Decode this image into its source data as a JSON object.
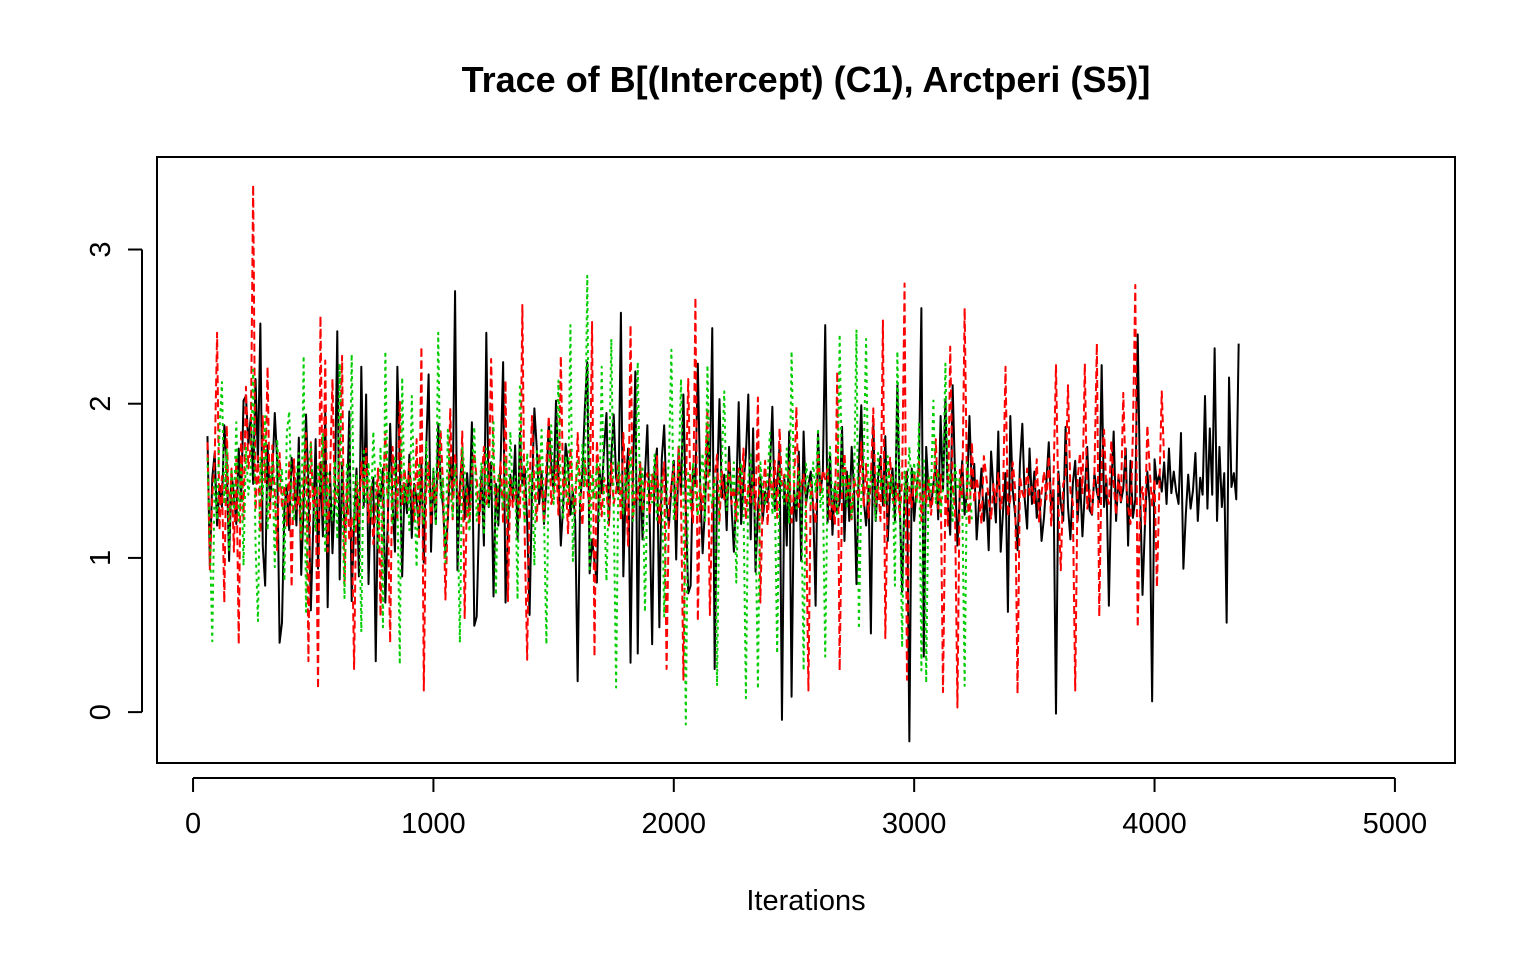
{
  "chart_data": {
    "type": "line",
    "title": "Trace of B[(Intercept) (C1), Arctperi (S5)]",
    "xlabel": "Iterations",
    "ylabel": "",
    "xlim": [
      -150,
      5250
    ],
    "ylim": [
      -0.33,
      3.6
    ],
    "xticks": [
      0,
      1000,
      2000,
      3000,
      4000,
      5000
    ],
    "xtick_labels": [
      "0",
      "1000",
      "2000",
      "3000",
      "4000",
      "5000"
    ],
    "yticks": [
      0,
      1,
      2,
      3
    ],
    "ytick_labels": [
      "0",
      "1",
      "2",
      "3"
    ],
    "grid": false,
    "legend": "none",
    "x_start": 60,
    "x_step": 10,
    "series": [
      {
        "color": "#000000",
        "linestyle": "solid",
        "values": [
          1.79,
          0.95,
          1.52,
          1.68,
          1.21,
          1.47,
          1.33,
          1.86,
          1.62,
          0.98,
          1.55,
          1.41,
          1.22,
          1.71,
          1.37,
          2.02,
          2.05,
          1.74,
          1.91,
          1.48,
          2.16,
          1.62,
          2.52,
          1.08,
          0.82,
          1.73,
          1.36,
          1.55,
          1.94,
          1.63,
          0.45,
          0.58,
          1.32,
          1.47,
          1.18,
          1.65,
          1.52,
          1.21,
          1.78,
          0.89,
          1.34,
          1.93,
          1.47,
          0.66,
          1.21,
          1.77,
          0.93,
          1.62,
          1.14,
          1.95,
          0.68,
          1.56,
          1.03,
          1.42,
          2.47,
          0.86,
          1.62,
          1.18,
          1.31,
          1.95,
          0.72,
          1.24,
          1.58,
          0.88,
          2.24,
          1.33,
          2.06,
          0.83,
          1.41,
          1.52,
          0.33,
          1.44,
          1.37,
          1.58,
          0.71,
          1.23,
          1.87,
          1.35,
          1.04,
          2.24,
          1.62,
          0.88,
          1.48,
          1.29,
          1.67,
          1.13,
          1.48,
          1.38,
          1.19,
          1.61,
          0.97,
          1.71,
          2.19,
          1.04,
          1.56,
          1.22,
          1.87,
          1.48,
          1.33,
          1.02,
          1.25,
          1.65,
          1.41,
          2.73,
          0.92,
          1.46,
          1.68,
          1.25,
          1.55,
          1.31,
          1.88,
          0.56,
          0.62,
          1.27,
          1.55,
          1.08,
          2.46,
          1.33,
          1.62,
          0.75,
          1.48,
          1.21,
          1.65,
          2.27,
          0.71,
          1.18,
          1.54,
          1.38,
          1.73,
          1.12,
          1.81,
          1.47,
          1.58,
          1.24,
          0.63,
          1.42,
          1.97,
          1.71,
          1.35,
          1.56,
          1.22,
          1.48,
          1.88,
          1.61,
          1.43,
          2.02,
          1.54,
          1.08,
          1.35,
          1.74,
          1.61,
          1.28,
          1.43,
          1.24,
          0.2,
          1.35,
          1.56,
          1.97,
          2.27,
          0.9,
          1.12,
          0.98,
          0.84,
          1.58,
          1.42,
          1.71,
          1.94,
          1.23,
          1.65,
          1.93,
          1.52,
          1.42,
          2.59,
          0.88,
          1.46,
          1.71,
          0.32,
          1.54,
          2.21,
          0.38,
          1.62,
          1.12,
          1.54,
          1.86,
          1.23,
          0.44,
          1.58,
          1.71,
          0.55,
          1.64,
          1.86,
          1.35,
          1.21,
          1.46,
          1.63,
          0.99,
          1.72,
          1.41,
          2.06,
          1.33,
          0.77,
          0.82,
          1.59,
          1.48,
          2.26,
          1.45,
          1.03,
          1.33,
          1.81,
          1.56,
          2.49,
          0.28,
          1.46,
          2.03,
          1.39,
          1.54,
          1.18,
          1.72,
          1.34,
          1.04,
          1.42,
          2.01,
          1.22,
          1.48,
          1.67,
          2.06,
          1.12,
          1.84,
          0.91,
          1.31,
          1.54,
          1.24,
          1.43,
          1.36,
          1.57,
          1.98,
          1.31,
          1.49,
          1.72,
          -0.05,
          1.51,
          1.08,
          1.82,
          0.1,
          1.45,
          1.24,
          1.69,
          0.98,
          1.82,
          1.35,
          1.47,
          1.56,
          1.33,
          0.69,
          1.81,
          1.42,
          1.55,
          2.51,
          1.23,
          1.68,
          1.15,
          1.47,
          1.29,
          1.36,
          1.85,
          1.11,
          1.56,
          1.24,
          1.72,
          1.44,
          0.83,
          1.61,
          1.99,
          1.38,
          1.21,
          1.45,
          0.51,
          1.87,
          1.24,
          1.52,
          1.66,
          1.34,
          1.79,
          1.11,
          1.45,
          1.58,
          1.24,
          2.12,
          1.36,
          0.78,
          1.42,
          1.56,
          -0.19,
          1.58,
          1.24,
          1.45,
          1.61,
          2.62,
          0.36,
          1.72,
          1.43,
          1.33,
          1.48,
          1.61,
          1.25,
          1.92,
          1.44,
          2.03,
          1.37,
          1.15,
          2.12,
          1.54,
          1.08,
          1.42,
          1.63,
          1.28,
          1.44,
          1.92,
          1.45,
          1.61,
          1.12,
          1.36,
          1.58,
          1.24,
          1.42,
          1.05,
          1.69,
          1.44,
          1.23,
          1.82,
          1.04,
          1.31,
          1.55,
          0.65,
          1.92,
          1.44,
          1.28,
          1.05,
          1.61,
          1.87,
          1.38,
          1.19,
          1.71,
          1.35,
          1.56,
          1.26,
          1.44,
          1.11,
          1.26,
          1.49,
          1.75,
          1.31,
          1.44,
          -0.01,
          1.56,
          1.35,
          1.24,
          1.85,
          1.33,
          1.12,
          1.48,
          1.63,
          1.24,
          1.52,
          1.14,
          1.43,
          1.72,
          1.31,
          1.28,
          1.55,
          1.43,
          1.36,
          2.25,
          1.33,
          1.51,
          0.69,
          1.45,
          1.82,
          1.24,
          1.53,
          1.36,
          1.45,
          1.71,
          1.08,
          1.63,
          1.26,
          1.38,
          2.45,
          1.44,
          0.76,
          1.21,
          1.56,
          1.35,
          0.07,
          1.64,
          1.48,
          1.54,
          1.43,
          1.62,
          1.35,
          1.71,
          1.42,
          1.56,
          1.43,
          1.35,
          1.81,
          0.93,
          1.28,
          1.54,
          1.32,
          1.44,
          1.68,
          1.24,
          1.52,
          1.41,
          2.05,
          1.32,
          1.84,
          1.41,
          2.36,
          1.24,
          1.72,
          1.33,
          1.55,
          0.58,
          2.17,
          1.46,
          1.55,
          1.38,
          2.39
        ]
      },
      {
        "color": "#ff0000",
        "linestyle": "dashed",
        "values": [
          1.75,
          0.92,
          1.41,
          1.63,
          2.46,
          1.18,
          1.53,
          0.71,
          1.86,
          1.22,
          1.58,
          1.04,
          1.65,
          0.44,
          1.83,
          1.25,
          2.11,
          1.58,
          1.72,
          3.42,
          1.31,
          1.66,
          1.16,
          1.92,
          1.49,
          2.24,
          1.26,
          1.73,
          1.41,
          1.05,
          1.68,
          1.32,
          1.47,
          1.21,
          1.62,
          0.81,
          1.64,
          1.32,
          1.41,
          1.12,
          1.52,
          1.81,
          0.33,
          1.75,
          1.33,
          1.47,
          0.15,
          2.57,
          1.28,
          2.28,
          1.04,
          1.55,
          2.16,
          1.35,
          1.42,
          1.62,
          2.31,
          0.82,
          1.48,
          1.11,
          1.27,
          0.28,
          1.51,
          1.23,
          1.62,
          1.42,
          1.71,
          1.23,
          1.46,
          1.09,
          1.35,
          1.58,
          0.62,
          1.43,
          1.82,
          1.33,
          0.45,
          1.72,
          1.48,
          1.26,
          2.02,
          1.34,
          1.58,
          1.37,
          1.62,
          1.41,
          1.24,
          1.77,
          1.12,
          2.37,
          0.14,
          1.44,
          1.62,
          1.21,
          1.51,
          1.34,
          1.56,
          1.82,
          1.46,
          0.73,
          1.28,
          1.97,
          1.25,
          1.68,
          1.43,
          1.35,
          1.82,
          0.61,
          1.45,
          1.24,
          1.53,
          1.68,
          1.51,
          1.21,
          1.48,
          1.72,
          1.35,
          1.41,
          2.29,
          1.62,
          1.32,
          1.49,
          1.62,
          1.22,
          2.15,
          0.72,
          1.51,
          1.33,
          1.45,
          1.38,
          1.25,
          2.64,
          1.12,
          0.34,
          1.48,
          1.92,
          1.45,
          1.24,
          1.68,
          1.45,
          1.22,
          1.62,
          1.92,
          1.35,
          1.42,
          1.64,
          1.28,
          2.31,
          1.41,
          1.53,
          1.16,
          1.72,
          1.39,
          1.29,
          1.81,
          1.43,
          1.21,
          1.64,
          1.45,
          1.32,
          2.53,
          0.36,
          1.76,
          1.48,
          1.27,
          1.52,
          1.46,
          1.21,
          1.62,
          1.35,
          1.43,
          1.63,
          1.24,
          1.81,
          1.46,
          1.08,
          2.51,
          1.26,
          1.42,
          1.38,
          1.62,
          1.29,
          1.48,
          1.55,
          1.28,
          1.54,
          1.37,
          1.66,
          1.21,
          1.43,
          1.62,
          0.28,
          1.35,
          1.47,
          1.59,
          1.25,
          1.72,
          1.38,
          0.21,
          1.42,
          2.16,
          1.36,
          1.23,
          2.69,
          0.59,
          1.48,
          1.31,
          1.56,
          1.97,
          0.63,
          1.35,
          1.52,
          1.67,
          1.24,
          1.56,
          1.38,
          1.41,
          1.63,
          1.35,
          1.46,
          1.23,
          1.58,
          1.42,
          1.71,
          1.25,
          1.48,
          1.36,
          1.55,
          1.31,
          2.04,
          0.71,
          1.38,
          1.63,
          1.21,
          1.52,
          1.39,
          1.63,
          1.26,
          1.84,
          1.47,
          1.54,
          1.35,
          1.62,
          1.23,
          1.43,
          1.98,
          1.33,
          1.47,
          1.54,
          1.35,
          0.14,
          1.49,
          1.35,
          1.22,
          1.68,
          1.43,
          1.57,
          1.51,
          1.58,
          1.24,
          1.38,
          1.21,
          2.21,
          0.27,
          1.42,
          1.68,
          1.39,
          1.51,
          1.25,
          1.52,
          1.43,
          1.38,
          1.75,
          1.33,
          1.61,
          1.26,
          1.52,
          1.97,
          1.35,
          1.46,
          1.24,
          2.54,
          0.48,
          1.43,
          1.65,
          1.38,
          1.35,
          1.48,
          1.27,
          1.51,
          2.78,
          0.21,
          1.46,
          1.33,
          1.55,
          1.38,
          1.63,
          1.24,
          1.48,
          1.36,
          1.52,
          1.28,
          1.43,
          1.77,
          1.32,
          1.54,
          0.13,
          1.42,
          1.21,
          2.37,
          1.46,
          1.31,
          0.03,
          1.57,
          1.38,
          2.62,
          1.43,
          1.21,
          1.75,
          1.36,
          1.52,
          1.41,
          1.22,
          1.66,
          1.53,
          1.38,
          1.25,
          1.48,
          1.36,
          1.55,
          1.32,
          1.44,
          2.24,
          1.27,
          1.38,
          1.62,
          1.45,
          0.12,
          1.53,
          1.42,
          1.38,
          1.58,
          1.41,
          1.46,
          1.35,
          1.64,
          1.23,
          1.42,
          1.56,
          1.38,
          1.66,
          1.21,
          1.52,
          2.25,
          1.35,
          0.92,
          1.48,
          1.52,
          2.12,
          1.43,
          1.36,
          0.14,
          1.51,
          1.68,
          1.42,
          2.26,
          1.32,
          1.44,
          1.28,
          1.55,
          2.39,
          0.62,
          1.61,
          1.83,
          1.42,
          1.35,
          1.76,
          1.48,
          1.28,
          1.54,
          1.37,
          2.07,
          1.52,
          1.33,
          1.22,
          1.81,
          2.77,
          0.55,
          1.38,
          1.46,
          1.22,
          1.86,
          1.57,
          1.34,
          1.51,
          0.81,
          1.44,
          2.08,
          1.62
        ]
      },
      {
        "color": "#00cd00",
        "linestyle": "dotted",
        "values": [
          1.65,
          1.14,
          0.46,
          1.52,
          1.25,
          1.83,
          2.14,
          1.35,
          1.71,
          1.05,
          1.58,
          1.31,
          1.88,
          1.24,
          1.62,
          0.95,
          1.72,
          1.41,
          1.56,
          2.22,
          1.08,
          0.59,
          1.65,
          1.38,
          1.92,
          1.18,
          1.48,
          1.62,
          0.94,
          1.77,
          1.45,
          1.58,
          0.85,
          1.81,
          1.95,
          1.35,
          1.24,
          1.52,
          1.68,
          1.12,
          2.31,
          0.65,
          1.55,
          1.74,
          1.35,
          1.17,
          1.61,
          1.42,
          1.81,
          1.03,
          1.55,
          1.36,
          1.24,
          1.63,
          1.12,
          2.26,
          1.45,
          0.74,
          1.62,
          1.31,
          2.32,
          1.18,
          1.54,
          1.42,
          0.52,
          1.71,
          1.35,
          1.62,
          1.26,
          1.82,
          1.44,
          1.05,
          1.72,
          0.55,
          2.34,
          1.38,
          1.56,
          1.21,
          1.65,
          1.42,
          0.31,
          2.17,
          1.35,
          1.52,
          1.18,
          2.05,
          1.44,
          0.94,
          1.62,
          1.37,
          1.21,
          1.76,
          1.45,
          1.32,
          1.58,
          1.21,
          2.46,
          1.38,
          1.52,
          0.97,
          1.83,
          1.44,
          1.27,
          1.61,
          1.35,
          0.45,
          1.72,
          1.56,
          1.34,
          1.17,
          1.58,
          1.85,
          1.24,
          1.43,
          1.62,
          1.15,
          1.71,
          1.32,
          1.48,
          1.88,
          0.76,
          1.54,
          1.46,
          1.32,
          1.65,
          1.25,
          1.82,
          1.41,
          1.53,
          0.73,
          2.13,
          1.45,
          1.22,
          1.68,
          1.38,
          1.56,
          0.95,
          1.71,
          1.44,
          1.83,
          1.27,
          0.44,
          1.62,
          1.86,
          1.35,
          1.54,
          2.15,
          1.42,
          1.25,
          1.66,
          1.35,
          2.51,
          0.98,
          1.45,
          1.63,
          1.32,
          1.74,
          1.47,
          2.83,
          0.91,
          1.55,
          1.38,
          1.62,
          1.24,
          2.24,
          1.35,
          0.85,
          1.48,
          2.42,
          1.32,
          0.16,
          1.62,
          1.45,
          1.28,
          1.57,
          1.38,
          1.71,
          1.24,
          1.46,
          2.27,
          1.33,
          1.58,
          0.65,
          1.42,
          1.54,
          1.36,
          1.67,
          1.23,
          1.44,
          1.52,
          0.62,
          1.38,
          1.65,
          2.35,
          1.24,
          1.47,
          1.52,
          2.16,
          1.38,
          -0.08,
          1.55,
          1.32,
          1.62,
          1.44,
          1.27,
          1.51,
          1.68,
          1.24,
          2.25,
          1.43,
          1.35,
          1.52,
          0.17,
          1.44,
          1.63,
          2.08,
          1.31,
          1.54,
          1.42,
          1.62,
          0.84,
          1.47,
          1.62,
          1.34,
          0.09,
          1.52,
          1.67,
          1.38,
          1.25,
          0.15,
          1.62,
          1.44,
          1.35,
          1.52,
          1.81,
          1.28,
          1.46,
          0.38,
          1.58,
          1.42,
          1.35,
          1.71,
          1.22,
          2.34,
          1.45,
          1.32,
          1.56,
          1.43,
          0.27,
          1.61,
          1.48,
          1.35,
          1.62,
          1.42,
          1.84,
          1.33,
          1.46,
          0.36,
          1.55,
          1.72,
          1.35,
          1.48,
          1.27,
          2.45,
          1.43,
          1.61,
          1.32,
          1.55,
          1.26,
          1.48,
          2.48,
          0.54,
          1.42,
          1.63,
          2.42,
          1.35,
          1.56,
          1.47,
          1.24,
          1.68,
          1.43,
          1.52,
          1.35,
          1.66,
          1.41,
          1.53,
          0.82,
          2.34,
          1.45,
          0.42,
          1.56,
          1.38,
          1.72,
          1.44,
          1.62,
          1.35,
          1.87,
          0.27,
          1.65,
          0.19,
          1.52,
          1.43,
          2.02,
          1.35,
          1.56,
          1.28,
          1.46,
          2.26,
          1.38,
          1.55,
          1.24,
          1.62,
          1.44,
          1.52,
          1.38,
          0.17,
          1.62,
          1.48,
          1.25
        ]
      }
    ]
  }
}
